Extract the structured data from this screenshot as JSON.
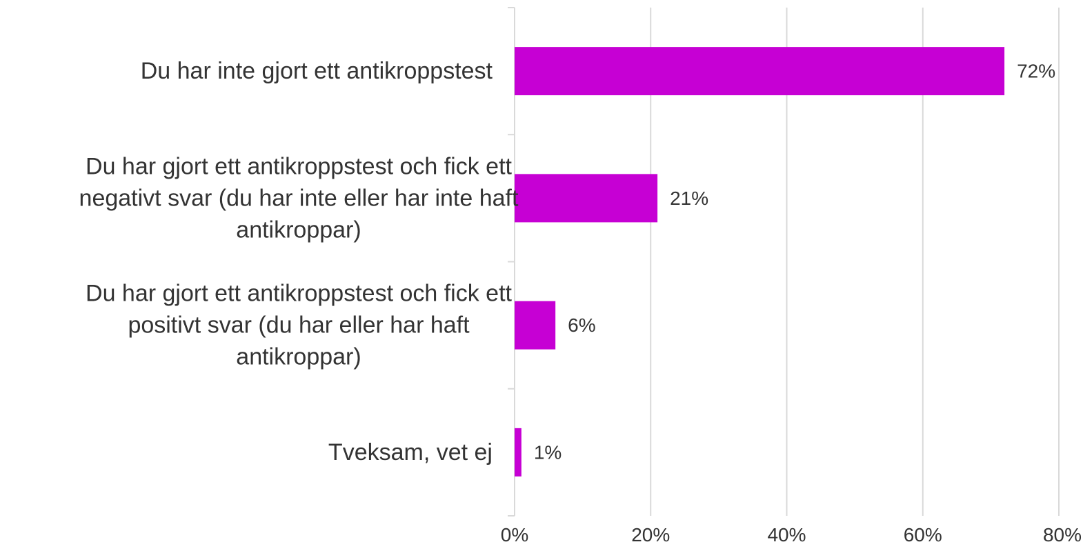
{
  "colors": {
    "bar": "#c600d4",
    "grid": "#d9d9d9",
    "axis": "#d9d9d9",
    "text": "#333333"
  },
  "chart_data": {
    "type": "bar",
    "orientation": "horizontal",
    "title": "",
    "xlabel": "",
    "ylabel": "",
    "xlim": [
      0,
      80
    ],
    "grid": true,
    "legend": "none",
    "categories": [
      "Du har inte gjort ett antikroppstest",
      "Du har gjort ett antikroppstest och fick ett negativt svar (du har inte eller har inte haft antikroppar)",
      "Du har gjort ett antikroppstest och fick ett positivt svar (du har eller har haft antikroppar)",
      "Tveksam, vet ej"
    ],
    "category_lines": [
      [
        "Du har inte gjort ett antikroppstest"
      ],
      [
        "Du har gjort ett antikroppstest och fick ett",
        "negativt svar (du har inte eller har inte haft",
        "antikroppar)"
      ],
      [
        "Du har gjort ett antikroppstest och fick ett",
        "positivt svar (du har eller har haft",
        "antikroppar)"
      ],
      [
        "Tveksam, vet ej"
      ]
    ],
    "values": [
      72,
      21,
      6,
      1
    ],
    "data_labels": [
      "72%",
      "21%",
      "6%",
      "1%"
    ],
    "ticks": [
      0,
      20,
      40,
      60,
      80
    ],
    "tick_labels": [
      "0%",
      "20%",
      "40%",
      "60%",
      "80%"
    ]
  }
}
